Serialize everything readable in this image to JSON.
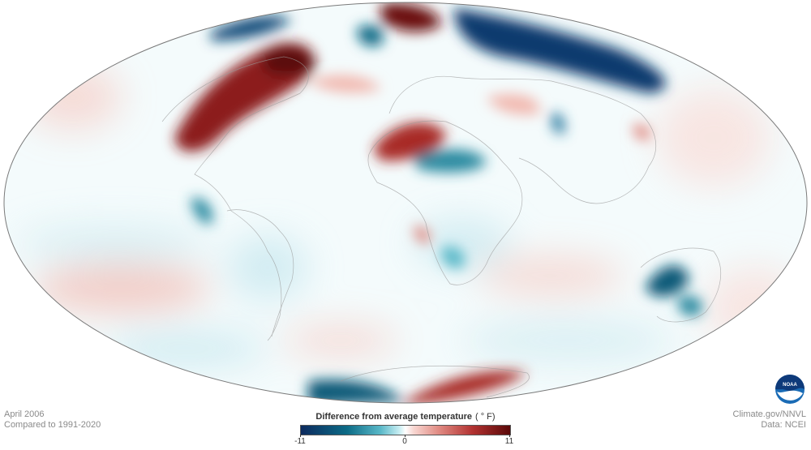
{
  "map": {
    "projection": "mollweide",
    "colors": {
      "strong_cold": "#0c2a5e",
      "cold": "#0c6b86",
      "cool": "#59b8c8",
      "neutral": "#ffffff",
      "warm": "#e8a49b",
      "hot": "#b23231",
      "strong_hot": "#5a0808",
      "outline": "#7a7a7a"
    }
  },
  "caption": {
    "date": "April 2006",
    "baseline": "Compared to 1991-2020"
  },
  "credits": {
    "site": "Climate.gov/NNVL",
    "data": "Data: NCEI"
  },
  "legend": {
    "title": "Difference from average temperature",
    "unit": "( ° F)",
    "min_label": "-11",
    "mid_label": "0",
    "max_label": "11"
  },
  "logo": {
    "text": "NOAA"
  }
}
